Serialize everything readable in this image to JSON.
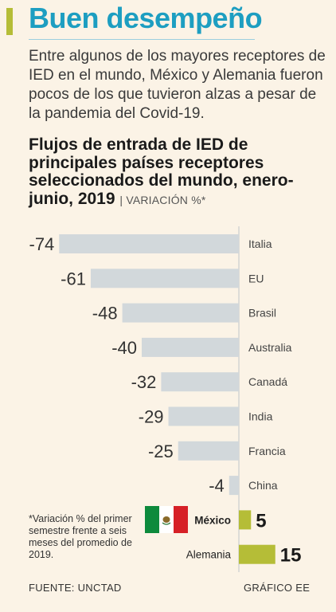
{
  "headline": "Buen desempeño",
  "intro": "Entre algunos de los mayores receptores de IED en el mundo, México y Alemania fueron pocos de los que tuvieron alzas a pesar de la pandemia del Covid-19.",
  "chart_title": "Flujos de entrada de IED de principales países receptores seleccionados del mundo, enero-junio, 2019",
  "chart_unit": "VARIACIÓN %*",
  "footnote": "*Variación % del primer semestre frente a seis meses del promedio de 2019.",
  "source": "FUENTE: UNCTAD",
  "credit": "GRÁFICO EE",
  "colors": {
    "negative": "#d2d8db",
    "positive": "#b5bd37",
    "accent": "#1d9ec1"
  },
  "chart_data": {
    "type": "bar",
    "orientation": "horizontal",
    "categories": [
      "Italia",
      "EU",
      "Brasil",
      "Australia",
      "Canadá",
      "India",
      "Francia",
      "China",
      "México",
      "Alemania"
    ],
    "values": [
      -74,
      -61,
      -48,
      -40,
      -32,
      -29,
      -25,
      -4,
      5,
      15
    ],
    "labels": [
      "-74",
      "-61",
      "-48",
      "-40",
      "-32",
      "-29",
      "-25",
      "-4",
      "5",
      "15"
    ],
    "title": "Flujos de entrada de IED de principales países receptores seleccionados del mundo, enero-junio, 2019",
    "ylabel": "VARIACIÓN %*",
    "xlim": [
      -74,
      15
    ],
    "grid": false
  }
}
